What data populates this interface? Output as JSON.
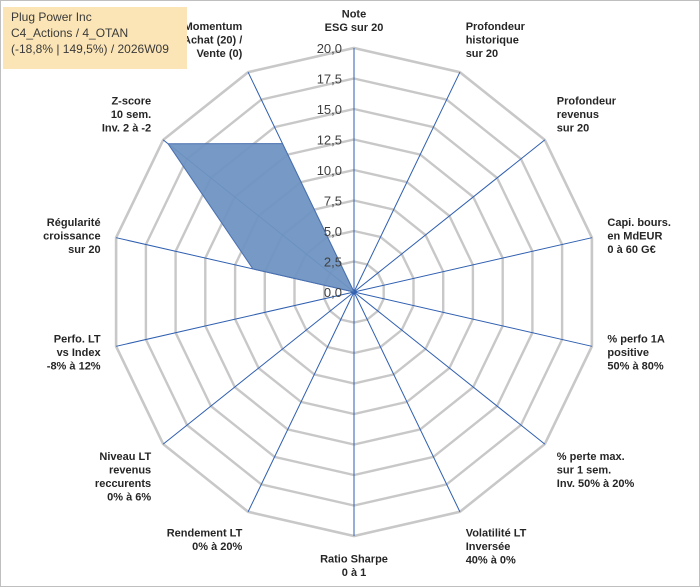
{
  "title": {
    "line1": "Plug Power Inc",
    "line2": "C4_Actions / 4_OTAN",
    "line3": "(-18,8% | 149,5%) / 2026W09"
  },
  "colors": {
    "fill": "#6f93c2",
    "stroke": "#4a70b0",
    "spoke": "#2f5fb0",
    "grid": "#c8c8c8"
  },
  "chart_data": {
    "type": "radar",
    "rmax": 20,
    "ticks": [
      "0,0",
      "2,5",
      "5,0",
      "7,5",
      "10,0",
      "12,5",
      "15,0",
      "17,5",
      "20,0"
    ],
    "tick_values": [
      0,
      2.5,
      5,
      7.5,
      10,
      12.5,
      15,
      17.5,
      20
    ],
    "axes": [
      {
        "label": [
          "Note",
          "ESG sur 20"
        ],
        "value": 0
      },
      {
        "label": [
          "Profondeur",
          "historique",
          "sur 20"
        ],
        "value": 0
      },
      {
        "label": [
          "Profondeur",
          "revenus",
          "sur 20"
        ],
        "value": 0
      },
      {
        "label": [
          "Capi. bours.",
          "en MdEUR",
          "0 à 60 G€"
        ],
        "value": 0
      },
      {
        "label": [
          "% perfo 1A",
          "positive",
          "50% à 80%"
        ],
        "value": 0
      },
      {
        "label": [
          "% perte max.",
          "sur 1 sem.",
          "Inv. 50% à 20%"
        ],
        "value": 0
      },
      {
        "label": [
          "Volatilité LT",
          "Inversée",
          "40% à 0%"
        ],
        "value": 0
      },
      {
        "label": [
          "Ratio Sharpe",
          "0 à 1"
        ],
        "value": 0
      },
      {
        "label": [
          "Rendement LT",
          "0% à 20%"
        ],
        "value": 0
      },
      {
        "label": [
          "Niveau LT",
          "revenus",
          "reccurents",
          "0% à 6%"
        ],
        "value": 0
      },
      {
        "label": [
          "Perfo. LT",
          "vs Index",
          "-8% à 12%"
        ],
        "value": 0
      },
      {
        "label": [
          "Régularité",
          "croissance",
          "sur 20"
        ],
        "value": 8.5
      },
      {
        "label": [
          "Z-score",
          "10 sem.",
          "Inv. 2 à -2"
        ],
        "value": 19.5
      },
      {
        "label": [
          "Momentum",
          "Achat (20) /",
          "Vente (0)"
        ],
        "value": 13.5
      }
    ]
  }
}
